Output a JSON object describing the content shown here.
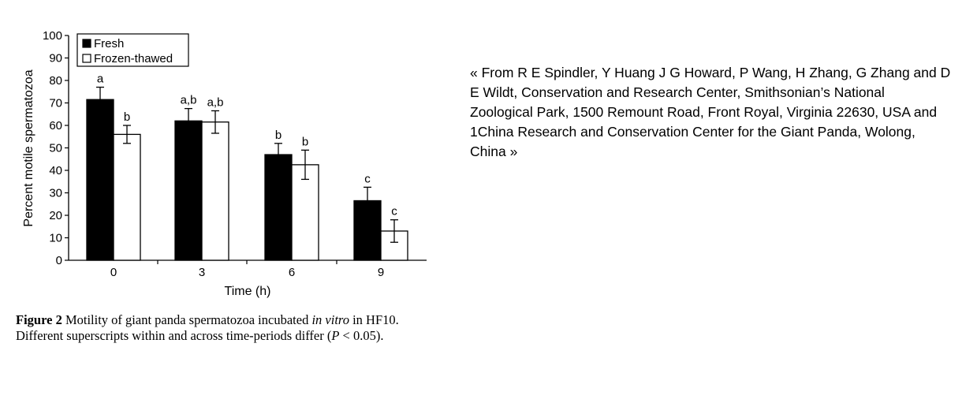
{
  "chart_data": {
    "type": "bar",
    "title": "",
    "xlabel": "Time (h)",
    "ylabel": "Percent motile spermatozoa",
    "ylim": [
      0,
      100
    ],
    "yticks": [
      0,
      10,
      20,
      30,
      40,
      50,
      60,
      70,
      80,
      90,
      100
    ],
    "categories": [
      "0",
      "3",
      "6",
      "9"
    ],
    "legend_position": "top-left",
    "grid": false,
    "series": [
      {
        "name": "Fresh",
        "color": "#000000",
        "values": [
          71.5,
          62,
          47,
          26.5
        ],
        "errors": [
          5.5,
          5.5,
          5,
          6
        ],
        "labels": [
          "a",
          "a,b",
          "b",
          "c"
        ]
      },
      {
        "name": "Frozen-thawed",
        "color": "#ffffff",
        "values": [
          56,
          61.5,
          42.5,
          13
        ],
        "errors": [
          4,
          5,
          6.5,
          5
        ],
        "labels": [
          "b",
          "a,b",
          "b",
          "c"
        ]
      }
    ]
  },
  "caption": {
    "figure_label": "Figure 2",
    "text_before_italic": "Motility of giant panda spermatozoa incubated",
    "italic": "in vitro",
    "text_after_italic": "in HF10. Different superscripts within and across time-periods differ",
    "stat_p": "P",
    "stat_rest": "< 0.05)."
  },
  "citation": {
    "text": "« From R E Spindler, Y Huang J G Howard, P Wang, H Zhang, G Zhang and D E Wildt, Conservation and Research Center, Smithsonian’s National Zoological Park, 1500 Remount Road, Front Royal, Virginia 22630, USA and 1China Research and Conservation Center for the Giant Panda, Wolong, China »"
  }
}
